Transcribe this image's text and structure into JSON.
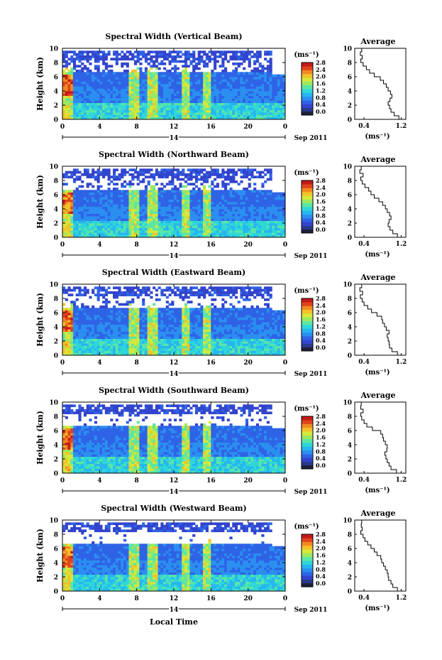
{
  "chart_data": [
    {
      "type": "heatmap",
      "title": "Spectral Width (Vertical Beam)",
      "ylabel": "Height (km)",
      "xlabel": "",
      "x_ticks": [
        "0",
        "4",
        "8",
        "12",
        "16",
        "20",
        "0"
      ],
      "y_ticks": [
        "0",
        "2",
        "4",
        "6",
        "8",
        "10"
      ],
      "xlim": [
        0,
        24
      ],
      "ylim": [
        0,
        10
      ],
      "date_day": "14",
      "date_label": "Sep 2011",
      "colorbar": {
        "unit": "(ms⁻¹)",
        "ticks": [
          "0.0",
          "0.4",
          "0.8",
          "1.2",
          "1.6",
          "2.0",
          "2.4",
          "2.8"
        ],
        "range": [
          0.0,
          2.8
        ]
      },
      "average": {
        "title": "Average",
        "xlabel": "(ms⁻¹)",
        "x_ticks": [
          "0.4",
          "1.2"
        ],
        "xlim": [
          0.2,
          1.3
        ],
        "height": [
          0.0,
          0.5,
          1.0,
          1.5,
          2.0,
          2.5,
          3.0,
          3.5,
          4.0,
          4.5,
          5.0,
          5.5,
          6.0,
          6.5,
          7.0,
          7.5,
          8.0,
          8.5,
          9.0,
          9.5,
          10.0
        ],
        "width": [
          1.25,
          1.15,
          1.05,
          0.98,
          0.95,
          0.92,
          0.96,
          1.0,
          0.97,
          0.92,
          0.88,
          0.82,
          0.75,
          0.62,
          0.52,
          0.45,
          0.38,
          0.33,
          0.36,
          0.32,
          0.35
        ]
      }
    },
    {
      "type": "heatmap",
      "title": "Spectral Width (Northward Beam)",
      "ylabel": "Height (km)",
      "xlabel": "",
      "x_ticks": [
        "0",
        "4",
        "8",
        "12",
        "16",
        "20",
        "0"
      ],
      "y_ticks": [
        "0",
        "2",
        "4",
        "6",
        "8",
        "10"
      ],
      "xlim": [
        0,
        24
      ],
      "ylim": [
        0,
        10
      ],
      "date_day": "14",
      "date_label": "Sep 2011",
      "colorbar": {
        "unit": "(ms⁻¹)",
        "ticks": [
          "0.0",
          "0.4",
          "0.8",
          "1.2",
          "1.6",
          "2.0",
          "2.4",
          "2.8"
        ],
        "range": [
          0.0,
          2.8
        ]
      },
      "average": {
        "title": "Average",
        "xlabel": "(ms⁻¹)",
        "x_ticks": [
          "0.4",
          "1.2"
        ],
        "xlim": [
          0.2,
          1.3
        ],
        "height": [
          0.0,
          0.5,
          1.0,
          1.5,
          2.0,
          2.5,
          3.0,
          3.5,
          4.0,
          4.5,
          5.0,
          5.5,
          6.0,
          6.5,
          7.0,
          7.5,
          8.0,
          8.5,
          9.0,
          9.5,
          10.0
        ],
        "width": [
          1.22,
          1.12,
          1.02,
          0.96,
          0.92,
          0.94,
          0.98,
          0.95,
          0.9,
          0.86,
          0.8,
          0.72,
          0.62,
          0.55,
          0.5,
          0.42,
          0.36,
          0.33,
          0.38,
          0.31,
          0.34
        ]
      }
    },
    {
      "type": "heatmap",
      "title": "Spectral Width (Eastward Beam)",
      "ylabel": "Height (km)",
      "xlabel": "",
      "x_ticks": [
        "0",
        "4",
        "8",
        "12",
        "16",
        "20",
        "0"
      ],
      "y_ticks": [
        "0",
        "2",
        "4",
        "6",
        "8",
        "10"
      ],
      "xlim": [
        0,
        24
      ],
      "ylim": [
        0,
        10
      ],
      "date_day": "14",
      "date_label": "Sep 2011",
      "colorbar": {
        "unit": "(ms⁻¹)",
        "ticks": [
          "0.0",
          "0.4",
          "0.8",
          "1.2",
          "1.6",
          "2.0",
          "2.4",
          "2.8"
        ],
        "range": [
          0.0,
          2.8
        ]
      },
      "average": {
        "title": "Average",
        "xlabel": "(ms⁻¹)",
        "x_ticks": [
          "0.4",
          "1.2"
        ],
        "xlim": [
          0.2,
          1.3
        ],
        "height": [
          0.0,
          0.5,
          1.0,
          1.5,
          2.0,
          2.5,
          3.0,
          3.5,
          4.0,
          4.5,
          5.0,
          5.5,
          6.0,
          6.5,
          7.0,
          7.5,
          8.0,
          8.5,
          9.0,
          9.5,
          10.0
        ],
        "width": [
          1.22,
          1.12,
          1.0,
          0.95,
          0.94,
          0.92,
          0.9,
          0.94,
          0.88,
          0.84,
          0.8,
          0.78,
          0.68,
          0.56,
          0.48,
          0.4,
          0.36,
          0.32,
          0.37,
          0.31,
          0.35
        ]
      }
    },
    {
      "type": "heatmap",
      "title": "Spectral Width (Southward Beam)",
      "ylabel": "Height (km)",
      "xlabel": "",
      "x_ticks": [
        "0",
        "4",
        "8",
        "12",
        "16",
        "20",
        "0"
      ],
      "y_ticks": [
        "0",
        "2",
        "4",
        "6",
        "8",
        "10"
      ],
      "xlim": [
        0,
        24
      ],
      "ylim": [
        0,
        10
      ],
      "date_day": "14",
      "date_label": "Sep 2011",
      "colorbar": {
        "unit": "(ms⁻¹)",
        "ticks": [
          "0.0",
          "0.4",
          "0.8",
          "1.2",
          "1.6",
          "2.0",
          "2.4",
          "2.8"
        ],
        "range": [
          0.0,
          2.8
        ]
      },
      "average": {
        "title": "Average",
        "xlabel": "(ms⁻¹)",
        "x_ticks": [
          "0.4",
          "1.2"
        ],
        "xlim": [
          0.2,
          1.3
        ],
        "height": [
          0.0,
          0.5,
          1.0,
          1.5,
          2.0,
          2.5,
          3.0,
          3.5,
          4.0,
          4.5,
          5.0,
          5.5,
          6.0,
          6.5,
          7.0,
          7.5,
          8.0,
          8.5,
          9.0,
          9.5,
          10.0
        ],
        "width": [
          1.2,
          1.1,
          0.98,
          0.94,
          0.9,
          0.87,
          0.85,
          0.89,
          0.9,
          0.86,
          0.82,
          0.8,
          0.76,
          0.58,
          0.46,
          0.4,
          0.35,
          0.33,
          0.38,
          0.33,
          0.34
        ]
      }
    },
    {
      "type": "heatmap",
      "title": "Spectral Width (Westward Beam)",
      "ylabel": "Height (km)",
      "xlabel": "Local Time",
      "x_ticks": [
        "0",
        "4",
        "8",
        "12",
        "16",
        "20",
        "0"
      ],
      "y_ticks": [
        "0",
        "2",
        "4",
        "6",
        "8",
        "10"
      ],
      "xlim": [
        0,
        24
      ],
      "ylim": [
        0,
        10
      ],
      "date_day": "14",
      "date_label": "Sep 2011",
      "colorbar": {
        "unit": "(ms⁻¹)",
        "ticks": [
          "0.0",
          "0.4",
          "0.8",
          "1.2",
          "1.6",
          "2.0",
          "2.4",
          "2.8"
        ],
        "range": [
          0.0,
          2.8
        ]
      },
      "average": {
        "title": "Average",
        "xlabel": "(ms⁻¹)",
        "x_ticks": [
          "0.4",
          "1.2"
        ],
        "xlim": [
          0.2,
          1.3
        ],
        "height": [
          0.0,
          0.5,
          1.0,
          1.5,
          2.0,
          2.5,
          3.0,
          3.5,
          4.0,
          4.5,
          5.0,
          5.5,
          6.0,
          6.5,
          7.0,
          7.5,
          8.0,
          8.5,
          9.0,
          9.5,
          10.0
        ],
        "width": [
          1.25,
          1.12,
          1.02,
          0.98,
          0.93,
          0.92,
          0.9,
          0.86,
          0.82,
          0.78,
          0.76,
          0.68,
          0.62,
          0.55,
          0.48,
          0.42,
          0.38,
          0.33,
          0.36,
          0.34,
          0.35
        ]
      }
    }
  ],
  "colors": {
    "colormap": [
      "#2a3a8c",
      "#3344cc",
      "#2f63e6",
      "#2b8ff0",
      "#27b6f0",
      "#2fd7d7",
      "#5ae6a6",
      "#9be863",
      "#d6e83a",
      "#f2c22a",
      "#f08a22",
      "#e0441c",
      "#c41a1a"
    ],
    "colorbar_bottom": "#1f1f3a",
    "axis": "#000000",
    "gap": "#ffffff"
  }
}
